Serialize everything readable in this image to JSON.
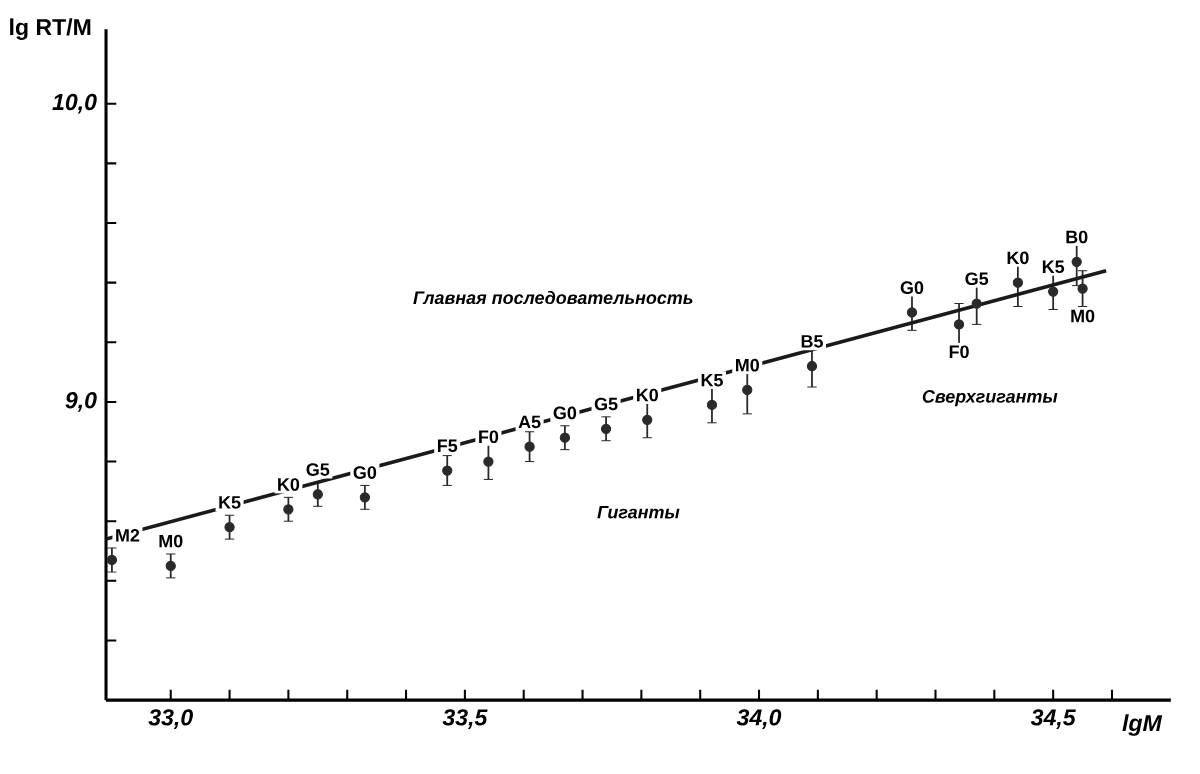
{
  "chart_data": {
    "type": "scatter",
    "xlabel": "lgM",
    "ylabel": "lg RT/M",
    "xlim": [
      32.89,
      34.7
    ],
    "ylim": [
      8.0,
      10.25
    ],
    "xticks": [
      {
        "value": 33.0,
        "label": "33,0"
      },
      {
        "value": 33.1,
        "label": null
      },
      {
        "value": 33.2,
        "label": null
      },
      {
        "value": 33.3,
        "label": null
      },
      {
        "value": 33.4,
        "label": null
      },
      {
        "value": 33.5,
        "label": "33,5"
      },
      {
        "value": 33.6,
        "label": null
      },
      {
        "value": 33.7,
        "label": null
      },
      {
        "value": 33.8,
        "label": null
      },
      {
        "value": 33.9,
        "label": null
      },
      {
        "value": 34.0,
        "label": "34,0"
      },
      {
        "value": 34.1,
        "label": null
      },
      {
        "value": 34.2,
        "label": null
      },
      {
        "value": 34.3,
        "label": null
      },
      {
        "value": 34.4,
        "label": null
      },
      {
        "value": 34.5,
        "label": "34,5"
      },
      {
        "value": 34.6,
        "label": null
      }
    ],
    "yticks": [
      {
        "value": 8.2,
        "label": null
      },
      {
        "value": 8.4,
        "label": null
      },
      {
        "value": 8.6,
        "label": null
      },
      {
        "value": 8.8,
        "label": null
      },
      {
        "value": 9.0,
        "label": "9,0"
      },
      {
        "value": 9.2,
        "label": null
      },
      {
        "value": 9.4,
        "label": null
      },
      {
        "value": 9.6,
        "label": null
      },
      {
        "value": 9.8,
        "label": null
      },
      {
        "value": 10.0,
        "label": "10,0"
      }
    ],
    "grid": false,
    "series": [
      {
        "color": "#2a2a2a",
        "marker": "circle",
        "x": [
          32.9,
          33.0,
          33.1,
          33.2,
          33.25,
          33.33,
          33.47,
          33.54,
          33.61,
          33.67,
          33.74,
          33.81,
          33.92,
          33.98,
          34.09,
          34.26,
          34.34,
          34.37,
          34.44,
          34.5,
          34.55,
          34.54
        ],
        "values": [
          8.47,
          8.45,
          8.58,
          8.64,
          8.69,
          8.68,
          8.77,
          8.8,
          8.85,
          8.88,
          8.91,
          8.94,
          8.99,
          9.04,
          9.12,
          9.3,
          9.26,
          9.33,
          9.4,
          9.37,
          9.38,
          9.47
        ],
        "errors": [
          0.04,
          0.04,
          0.04,
          0.04,
          0.04,
          0.04,
          0.05,
          0.06,
          0.05,
          0.04,
          0.04,
          0.06,
          0.06,
          0.08,
          0.07,
          0.06,
          0.07,
          0.07,
          0.08,
          0.06,
          0.06,
          0.08
        ]
      },
      {
        "type": "line",
        "color": "#1a1a1a",
        "x": [
          32.89,
          34.59
        ],
        "values": [
          8.54,
          9.44
        ]
      }
    ],
    "annotations": [
      {
        "text": "M2",
        "x": 32.9,
        "y": 8.47
      },
      {
        "text": "M0",
        "x": 33.0,
        "y": 8.45
      },
      {
        "text": "K5",
        "x": 33.1,
        "y": 8.58
      },
      {
        "text": "K0",
        "x": 33.2,
        "y": 8.64
      },
      {
        "text": "G5",
        "x": 33.25,
        "y": 8.69
      },
      {
        "text": "G0",
        "x": 33.33,
        "y": 8.68
      },
      {
        "text": "F5",
        "x": 33.47,
        "y": 8.77
      },
      {
        "text": "F0",
        "x": 33.54,
        "y": 8.8
      },
      {
        "text": "A5",
        "x": 33.61,
        "y": 8.85
      },
      {
        "text": "G0",
        "x": 33.67,
        "y": 8.88
      },
      {
        "text": "G5",
        "x": 33.74,
        "y": 8.91
      },
      {
        "text": "K0",
        "x": 33.81,
        "y": 8.94
      },
      {
        "text": "K5",
        "x": 33.92,
        "y": 8.99
      },
      {
        "text": "M0",
        "x": 33.98,
        "y": 9.04
      },
      {
        "text": "B5",
        "x": 34.09,
        "y": 9.12
      },
      {
        "text": "G0",
        "x": 34.26,
        "y": 9.3
      },
      {
        "text": "F0",
        "x": 34.34,
        "y": 9.26
      },
      {
        "text": "G5",
        "x": 34.37,
        "y": 9.33
      },
      {
        "text": "K0",
        "x": 34.44,
        "y": 9.4
      },
      {
        "text": "K5",
        "x": 34.5,
        "y": 9.37
      },
      {
        "text": "M0",
        "x": 34.55,
        "y": 9.38
      },
      {
        "text": "B0",
        "x": 34.54,
        "y": 9.47
      },
      "Главная последовательность",
      "Гиганты",
      "Сверхгиганты"
    ]
  }
}
